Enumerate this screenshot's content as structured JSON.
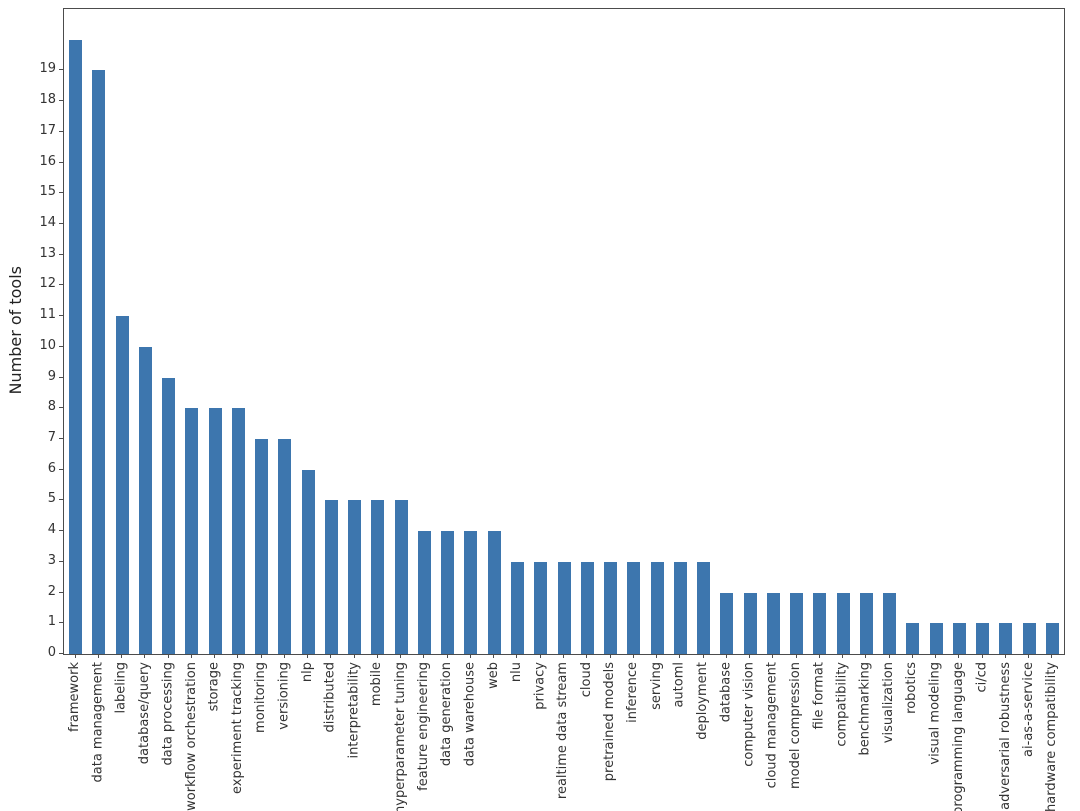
{
  "colors": {
    "bar": "#3d76ae",
    "spine": "#4c4c4c",
    "tick_text": "#333333",
    "background": "#ffffff"
  },
  "chart_data": {
    "type": "bar",
    "title": "",
    "xlabel": "",
    "ylabel": "Number of tools",
    "ylim": [
      0,
      21
    ],
    "yticks": [
      0,
      1,
      2,
      3,
      4,
      5,
      6,
      7,
      8,
      9,
      10,
      11,
      12,
      13,
      14,
      15,
      16,
      17,
      18,
      19
    ],
    "grid": false,
    "legend": null,
    "bar_color": "#3d76ae",
    "categories": [
      "framework",
      "data management",
      "labeling",
      "database/query",
      "data processing",
      "workflow orchestration",
      "storage",
      "experiment tracking",
      "monitoring",
      "versioning",
      "nlp",
      "distributed",
      "interpretability",
      "mobile",
      "hyperparameter tuning",
      "feature engineering",
      "data generation",
      "data warehouse",
      "web",
      "nlu",
      "privacy",
      "realtime data stream",
      "cloud",
      "pretrained models",
      "inference",
      "serving",
      "automl",
      "deployment",
      "database",
      "computer vision",
      "cloud management",
      "model compression",
      "file format",
      "compatibility",
      "benchmarking",
      "visualization",
      "robotics",
      "visual modeling",
      "programming language",
      "ci/cd",
      "adversarial robustness",
      "ai-as-a-service",
      "hardware compatibility"
    ],
    "values": [
      20,
      19,
      11,
      10,
      9,
      8,
      8,
      8,
      7,
      7,
      6,
      5,
      5,
      5,
      5,
      4,
      4,
      4,
      4,
      3,
      3,
      3,
      3,
      3,
      3,
      3,
      3,
      3,
      2,
      2,
      2,
      2,
      2,
      2,
      2,
      2,
      1,
      1,
      1,
      1,
      1,
      1,
      1
    ]
  }
}
